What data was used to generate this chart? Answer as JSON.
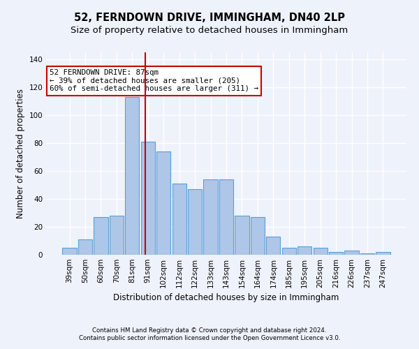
{
  "title": "52, FERNDOWN DRIVE, IMMINGHAM, DN40 2LP",
  "subtitle": "Size of property relative to detached houses in Immingham",
  "xlabel": "Distribution of detached houses by size in Immingham",
  "ylabel": "Number of detached properties",
  "categories": [
    "39sqm",
    "50sqm",
    "60sqm",
    "70sqm",
    "81sqm",
    "91sqm",
    "102sqm",
    "112sqm",
    "122sqm",
    "133sqm",
    "143sqm",
    "154sqm",
    "164sqm",
    "174sqm",
    "185sqm",
    "195sqm",
    "205sqm",
    "216sqm",
    "226sqm",
    "237sqm",
    "247sqm"
  ],
  "values": [
    5,
    11,
    27,
    28,
    113,
    81,
    74,
    51,
    47,
    54,
    54,
    28,
    27,
    13,
    5,
    6,
    5,
    2,
    3,
    1,
    2
  ],
  "bar_color": "#aec6e8",
  "bar_edge_color": "#5a9fd4",
  "annotation_line1": "52 FERNDOWN DRIVE: 87sqm",
  "annotation_line2": "← 39% of detached houses are smaller (205)",
  "annotation_line3": "60% of semi-detached houses are larger (311) →",
  "vline_position": 4.82,
  "vline_color": "#cc0000",
  "ylim": [
    0,
    145
  ],
  "yticks": [
    0,
    20,
    40,
    60,
    80,
    100,
    120,
    140
  ],
  "footnote1": "Contains HM Land Registry data © Crown copyright and database right 2024.",
  "footnote2": "Contains public sector information licensed under the Open Government Licence v3.0.",
  "background_color": "#eef2fb",
  "grid_color": "#ffffff",
  "title_fontsize": 10.5,
  "subtitle_fontsize": 9.5,
  "axis_label_fontsize": 8.5,
  "tick_fontsize": 7.5,
  "footnote_fontsize": 6.2,
  "annotation_fontsize": 7.8
}
